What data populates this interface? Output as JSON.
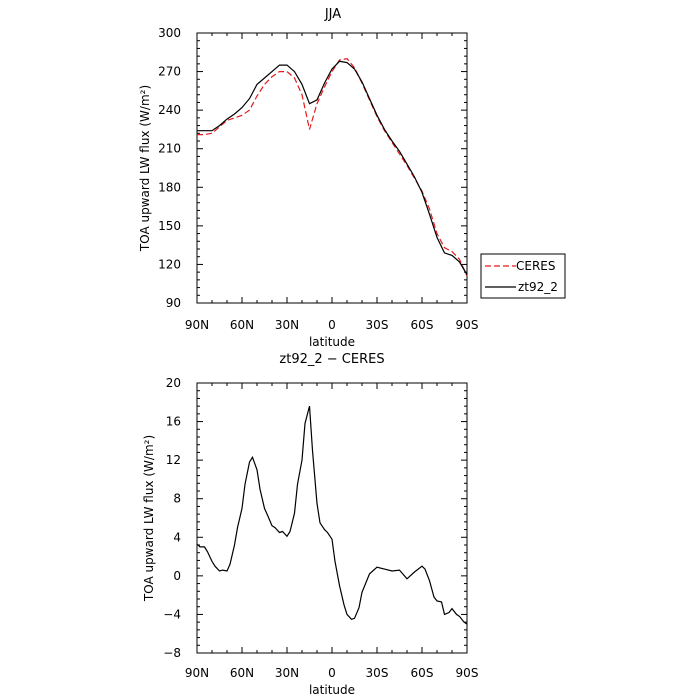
{
  "chart_data": [
    {
      "type": "line",
      "title": "JJA",
      "xlabel": "latitude",
      "ylabel": "TOA upward LW flux (W/m²)",
      "ylim": [
        90,
        300
      ],
      "yticks": [
        "90",
        "120",
        "150",
        "180",
        "210",
        "240",
        "270",
        "300"
      ],
      "xlim": [
        90,
        -90
      ],
      "xtick_labels": [
        "90N",
        "60N",
        "30N",
        "0",
        "30S",
        "60S",
        "90S"
      ],
      "legend": [
        "CERES",
        "zt92_2"
      ],
      "legend_position": "right",
      "x": [
        90,
        85,
        80,
        75,
        70,
        65,
        60,
        55,
        50,
        45,
        40,
        35,
        30,
        25,
        20,
        15,
        10,
        5,
        0,
        -5,
        -10,
        -15,
        -20,
        -25,
        -30,
        -35,
        -40,
        -45,
        -50,
        -55,
        -60,
        -65,
        -70,
        -75,
        -80,
        -85,
        -90
      ],
      "series": [
        {
          "name": "CERES",
          "color": "#e41a1c",
          "dash": "dashed",
          "values": [
            221,
            221,
            222,
            227,
            232,
            234,
            236,
            240,
            251,
            260,
            266,
            270,
            270,
            265,
            252,
            225,
            245,
            258,
            270,
            279,
            280,
            273,
            261,
            248,
            235,
            224,
            215,
            206,
            197,
            187,
            177,
            163,
            144,
            133,
            130,
            124,
            111
          ]
        },
        {
          "name": "zt92_2",
          "color": "#000000",
          "dash": "solid",
          "values": [
            224,
            224,
            224,
            228,
            233,
            237,
            242,
            249,
            260,
            265,
            270,
            275,
            275,
            270,
            260,
            245,
            248,
            261,
            272,
            278,
            277,
            272,
            262,
            249,
            236,
            225,
            216,
            208,
            198,
            188,
            176,
            159,
            141,
            129,
            127,
            122,
            112
          ]
        }
      ]
    },
    {
      "type": "line",
      "title": "zt92_2 − CERES",
      "xlabel": "latitude",
      "ylabel": "TOA upward LW flux (W/m²)",
      "ylim": [
        -8,
        20
      ],
      "yticks": [
        "−8",
        "−4",
        "0",
        "4",
        "8",
        "12",
        "16",
        "20"
      ],
      "xlim": [
        90,
        -90
      ],
      "xtick_labels": [
        "90N",
        "60N",
        "30N",
        "0",
        "30S",
        "60S",
        "90S"
      ],
      "x": [
        90,
        88,
        85,
        83,
        80,
        78,
        75,
        73,
        70,
        68,
        65,
        63,
        60,
        58,
        55,
        53,
        50,
        48,
        45,
        43,
        40,
        38,
        35,
        33,
        30,
        28,
        25,
        23,
        20,
        18,
        15,
        13,
        10,
        8,
        5,
        3,
        0,
        -2,
        -5,
        -8,
        -10,
        -13,
        -15,
        -18,
        -20,
        -25,
        -30,
        -35,
        -40,
        -45,
        -50,
        -55,
        -60,
        -62,
        -65,
        -68,
        -70,
        -73,
        -75,
        -78,
        -80,
        -83,
        -85,
        -88,
        -90
      ],
      "series": [
        {
          "name": "",
          "color": "#000000",
          "values": [
            3.3,
            3.0,
            3.0,
            2.5,
            1.5,
            1.0,
            0.5,
            0.6,
            0.5,
            1.2,
            3.2,
            5.0,
            7.0,
            9.5,
            11.8,
            12.3,
            11.0,
            9.0,
            7.0,
            6.3,
            5.2,
            5.0,
            4.5,
            4.6,
            4.1,
            4.6,
            6.5,
            9.5,
            12.0,
            15.8,
            17.6,
            13.0,
            7.5,
            5.5,
            4.8,
            4.5,
            3.8,
            1.5,
            -1.0,
            -3.0,
            -4.0,
            -4.5,
            -4.4,
            -3.3,
            -1.7,
            0.2,
            0.9,
            0.7,
            0.5,
            0.6,
            -0.3,
            0.4,
            1.0,
            0.7,
            -0.5,
            -2.2,
            -2.6,
            -2.7,
            -4.0,
            -3.8,
            -3.4,
            -4.0,
            -4.2,
            -4.8,
            -5.0
          ]
        }
      ]
    }
  ]
}
